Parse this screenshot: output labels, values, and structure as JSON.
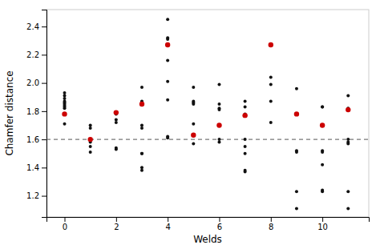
{
  "chart_data": {
    "type": "scatter",
    "xlabel": "Welds",
    "ylabel": "Chamfer distance",
    "xlim": [
      -0.7,
      11.8
    ],
    "ylim": [
      1.05,
      2.52
    ],
    "xticks": [
      0,
      2,
      4,
      6,
      8,
      10
    ],
    "yticks": [
      1.2,
      1.4,
      1.6,
      1.8,
      {
        "value": 2,
        "label": "2.0"
      },
      2.2,
      2.4
    ],
    "threshold": {
      "value": 1.6,
      "color": "#555555",
      "line_style": "dashed"
    },
    "series": [
      {
        "color": "#111111",
        "marker": "circle",
        "x": [
          0,
          0,
          0,
          0,
          0,
          0,
          0,
          0,
          0,
          0,
          1,
          1,
          1,
          1,
          1,
          1,
          2,
          2,
          2,
          2,
          2,
          3,
          3,
          3,
          3,
          3,
          3,
          3,
          3,
          3,
          4,
          4,
          4,
          4,
          4,
          4,
          4,
          4,
          5,
          5,
          5,
          5,
          5,
          5,
          6,
          6,
          6,
          6,
          6,
          6,
          6,
          7,
          7,
          7,
          7,
          7,
          7,
          7,
          7,
          8,
          8,
          8,
          8,
          9,
          9,
          9,
          9,
          9,
          9,
          10,
          10,
          10,
          10,
          10,
          10,
          10,
          11,
          11,
          11,
          11,
          11,
          11,
          11,
          11
        ],
        "values": [
          1.93,
          1.91,
          1.89,
          1.87,
          1.86,
          1.85,
          1.84,
          1.83,
          1.82,
          1.71,
          1.7,
          1.68,
          1.6,
          1.58,
          1.55,
          1.51,
          1.78,
          1.74,
          1.72,
          1.54,
          1.53,
          1.97,
          1.87,
          1.85,
          1.7,
          1.68,
          1.5,
          1.5,
          1.4,
          1.38,
          2.45,
          2.32,
          2.31,
          2.16,
          2.01,
          1.88,
          1.62,
          1.61,
          1.97,
          1.87,
          1.86,
          1.85,
          1.71,
          1.57,
          1.99,
          1.85,
          1.82,
          1.81,
          1.7,
          1.6,
          1.58,
          1.87,
          1.83,
          1.78,
          1.6,
          1.55,
          1.5,
          1.38,
          1.37,
          2.04,
          1.99,
          1.87,
          1.72,
          1.96,
          1.78,
          1.52,
          1.51,
          1.23,
          1.11,
          1.83,
          1.83,
          1.52,
          1.51,
          1.42,
          1.24,
          1.23,
          1.91,
          1.82,
          1.81,
          1.6,
          1.58,
          1.57,
          1.23,
          1.11
        ]
      },
      {
        "color": "#cc0000",
        "marker": "circle",
        "x": [
          0,
          1,
          2,
          3,
          4,
          5,
          6,
          7,
          8,
          9,
          10,
          11
        ],
        "values": [
          1.78,
          1.6,
          1.79,
          1.85,
          2.27,
          1.63,
          1.7,
          1.77,
          2.27,
          1.78,
          1.7,
          1.81
        ]
      }
    ]
  }
}
